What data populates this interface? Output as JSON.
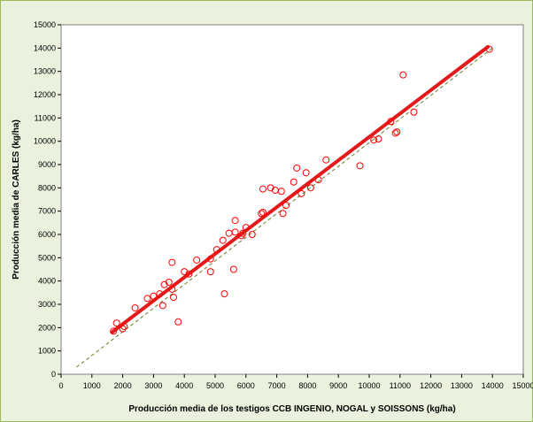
{
  "chart_data": {
    "type": "scatter",
    "title": "",
    "xlabel": "Producción media de los testigos CCB INGENIO, NOGAL y SOISSONS (kg/ha)",
    "ylabel": "Producción media de CARLES (kg/ha)",
    "xlim": [
      0,
      15000
    ],
    "ylim": [
      0,
      15000
    ],
    "x_ticks": [
      0,
      1000,
      2000,
      3000,
      4000,
      5000,
      6000,
      7000,
      8000,
      9000,
      10000,
      11000,
      12000,
      13000,
      14000,
      15000
    ],
    "y_ticks": [
      0,
      1000,
      2000,
      3000,
      4000,
      5000,
      6000,
      7000,
      8000,
      9000,
      10000,
      11000,
      12000,
      13000,
      14000,
      15000
    ],
    "grid": false,
    "colors": {
      "points": "#ff0000",
      "regression": "#e31a1c",
      "reference": "#6b7d2a"
    },
    "series": [
      {
        "type": "scatter",
        "points": [
          [
            1700,
            1850
          ],
          [
            1800,
            2200
          ],
          [
            2000,
            1950
          ],
          [
            2050,
            2050
          ],
          [
            2400,
            2850
          ],
          [
            2800,
            3250
          ],
          [
            3000,
            3350
          ],
          [
            3200,
            3450
          ],
          [
            3300,
            2950
          ],
          [
            3350,
            3850
          ],
          [
            3500,
            3950
          ],
          [
            3600,
            4800
          ],
          [
            3600,
            3650
          ],
          [
            3650,
            3300
          ],
          [
            3800,
            2250
          ],
          [
            4000,
            4400
          ],
          [
            4150,
            4300
          ],
          [
            4400,
            4900
          ],
          [
            4850,
            4950
          ],
          [
            4850,
            4400
          ],
          [
            5050,
            5350
          ],
          [
            5250,
            5750
          ],
          [
            5300,
            3450
          ],
          [
            5450,
            6050
          ],
          [
            5600,
            4500
          ],
          [
            5650,
            6100
          ],
          [
            5650,
            6600
          ],
          [
            5850,
            5950
          ],
          [
            5900,
            6050
          ],
          [
            6000,
            6300
          ],
          [
            6200,
            6000
          ],
          [
            6500,
            6900
          ],
          [
            6550,
            7950
          ],
          [
            6550,
            6950
          ],
          [
            6800,
            8000
          ],
          [
            6950,
            7900
          ],
          [
            7150,
            7850
          ],
          [
            7200,
            6900
          ],
          [
            7300,
            7250
          ],
          [
            7550,
            8250
          ],
          [
            7650,
            8850
          ],
          [
            7800,
            7750
          ],
          [
            7950,
            8650
          ],
          [
            8100,
            8000
          ],
          [
            8350,
            8350
          ],
          [
            8600,
            9200
          ],
          [
            9700,
            8950
          ],
          [
            10150,
            10050
          ],
          [
            10300,
            10100
          ],
          [
            10700,
            10850
          ],
          [
            10850,
            10350
          ],
          [
            10900,
            10400
          ],
          [
            11100,
            12850
          ],
          [
            11450,
            11250
          ],
          [
            13900,
            13950
          ]
        ]
      },
      {
        "type": "line",
        "role": "regression",
        "points": [
          [
            1650,
            1800
          ],
          [
            13850,
            14050
          ]
        ]
      },
      {
        "type": "line",
        "role": "reference",
        "points": [
          [
            500,
            300
          ],
          [
            14000,
            14000
          ]
        ]
      }
    ]
  }
}
